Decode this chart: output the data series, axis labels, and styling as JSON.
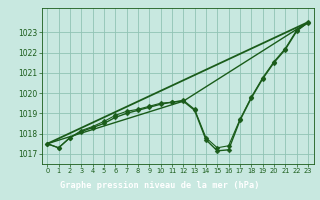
{
  "title": "Graphe pression niveau de la mer (hPa)",
  "background_color": "#c8e8e0",
  "plot_bg_color": "#c8e8e0",
  "grid_color": "#90c4b4",
  "line_color": "#1a5c1a",
  "title_bg_color": "#2a6e2a",
  "title_text_color": "#ffffff",
  "xlim": [
    -0.5,
    23.5
  ],
  "ylim": [
    1016.5,
    1024.2
  ],
  "xticks": [
    0,
    1,
    2,
    3,
    4,
    5,
    6,
    7,
    8,
    9,
    10,
    11,
    12,
    13,
    14,
    15,
    16,
    17,
    18,
    19,
    20,
    21,
    22,
    23
  ],
  "yticks": [
    1017,
    1018,
    1019,
    1020,
    1021,
    1022,
    1023
  ],
  "series": [
    {
      "name": "main_with_dip",
      "x": [
        0,
        1,
        2,
        3,
        4,
        5,
        6,
        7,
        8,
        9,
        10,
        11,
        12,
        13,
        14,
        15,
        16,
        17,
        18,
        19,
        20,
        21,
        22,
        23
      ],
      "y": [
        1017.5,
        1017.3,
        1017.8,
        1018.1,
        1018.3,
        1018.5,
        1018.8,
        1019.0,
        1019.15,
        1019.3,
        1019.45,
        1019.55,
        1019.6,
        1019.15,
        1017.7,
        1017.15,
        1017.2,
        1018.65,
        1019.75,
        1020.7,
        1021.5,
        1022.15,
        1023.05,
        1023.5
      ],
      "marker": "D",
      "markersize": 2.5,
      "linewidth": 1.0
    },
    {
      "name": "second_with_dip",
      "x": [
        0,
        1,
        2,
        3,
        4,
        5,
        6,
        7,
        8,
        9,
        10,
        11,
        12,
        13,
        14,
        15,
        16,
        17,
        18,
        19,
        20,
        21,
        22,
        23
      ],
      "y": [
        1017.5,
        1017.3,
        1017.8,
        1018.15,
        1018.35,
        1018.6,
        1018.9,
        1019.1,
        1019.2,
        1019.35,
        1019.5,
        1019.55,
        1019.65,
        1019.2,
        1017.8,
        1017.3,
        1017.4,
        1018.7,
        1019.8,
        1020.75,
        1021.55,
        1022.2,
        1023.1,
        1023.45
      ],
      "marker": "D",
      "markersize": 2.5,
      "linewidth": 0.8
    },
    {
      "name": "straight_line",
      "x": [
        0,
        23
      ],
      "y": [
        1017.5,
        1023.5
      ],
      "marker": null,
      "linewidth": 1.3
    },
    {
      "name": "triangle_line",
      "x": [
        0,
        12,
        23
      ],
      "y": [
        1017.5,
        1019.6,
        1023.5
      ],
      "marker": null,
      "linewidth": 1.0
    }
  ]
}
